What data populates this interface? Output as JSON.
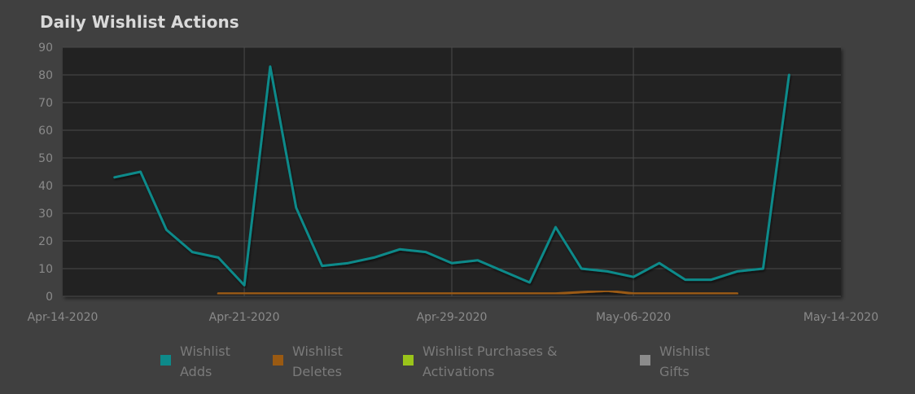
{
  "chart_data": {
    "type": "line",
    "title": "Daily Wishlist Actions",
    "xlabel": "",
    "ylabel": "",
    "ylim": [
      0,
      90
    ],
    "yticks": [
      0,
      10,
      20,
      30,
      40,
      50,
      60,
      70,
      80,
      90
    ],
    "xlim": [
      "2020-04-14",
      "2020-05-14"
    ],
    "xticks": [
      {
        "date": "2020-04-14",
        "label": "Apr-14-2020"
      },
      {
        "date": "2020-04-21",
        "label": "Apr-21-2020"
      },
      {
        "date": "2020-04-29",
        "label": "Apr-29-2020"
      },
      {
        "date": "2020-05-06",
        "label": "May-06-2020"
      },
      {
        "date": "2020-05-14",
        "label": "May-14-2020"
      }
    ],
    "grid": true,
    "legend_position": "bottom",
    "series": [
      {
        "name": "Wishlist Adds",
        "color": "#0d8a8a",
        "points": [
          [
            "2020-04-16",
            43
          ],
          [
            "2020-04-17",
            45
          ],
          [
            "2020-04-18",
            24
          ],
          [
            "2020-04-19",
            16
          ],
          [
            "2020-04-20",
            14
          ],
          [
            "2020-04-21",
            4
          ],
          [
            "2020-04-22",
            83
          ],
          [
            "2020-04-23",
            32
          ],
          [
            "2020-04-24",
            11
          ],
          [
            "2020-04-25",
            12
          ],
          [
            "2020-04-26",
            14
          ],
          [
            "2020-04-27",
            17
          ],
          [
            "2020-04-28",
            16
          ],
          [
            "2020-04-29",
            12
          ],
          [
            "2020-04-30",
            13
          ],
          [
            "2020-05-01",
            9
          ],
          [
            "2020-05-02",
            5
          ],
          [
            "2020-05-03",
            25
          ],
          [
            "2020-05-04",
            10
          ],
          [
            "2020-05-05",
            9
          ],
          [
            "2020-05-06",
            7
          ],
          [
            "2020-05-07",
            12
          ],
          [
            "2020-05-08",
            6
          ],
          [
            "2020-05-09",
            6
          ],
          [
            "2020-05-10",
            9
          ],
          [
            "2020-05-11",
            10
          ],
          [
            "2020-05-12",
            80
          ]
        ]
      },
      {
        "name": "Wishlist Deletes",
        "color": "#9a5a12",
        "points": [
          [
            "2020-04-20",
            1
          ],
          [
            "2020-04-21",
            1
          ],
          [
            "2020-04-22",
            1
          ],
          [
            "2020-04-23",
            1
          ],
          [
            "2020-04-24",
            1
          ],
          [
            "2020-04-25",
            1
          ],
          [
            "2020-04-26",
            1
          ],
          [
            "2020-04-27",
            1
          ],
          [
            "2020-04-28",
            1
          ],
          [
            "2020-04-29",
            1
          ],
          [
            "2020-04-30",
            1
          ],
          [
            "2020-05-01",
            1
          ],
          [
            "2020-05-02",
            1
          ],
          [
            "2020-05-03",
            1
          ],
          [
            "2020-05-04",
            1.5
          ],
          [
            "2020-05-05",
            2
          ],
          [
            "2020-05-06",
            1
          ],
          [
            "2020-05-07",
            1
          ],
          [
            "2020-05-08",
            1
          ],
          [
            "2020-05-09",
            1
          ],
          [
            "2020-05-10",
            1
          ]
        ]
      },
      {
        "name": "Wishlist Purchases & Activations",
        "color": "#9ac41a",
        "points": []
      },
      {
        "name": "Wishlist Gifts",
        "color": "#8c8c8c",
        "points": []
      }
    ]
  },
  "legend": [
    {
      "line1": "Wishlist",
      "line2": "Adds",
      "color": "#0d8a8a"
    },
    {
      "line1": "Wishlist",
      "line2": "Deletes",
      "color": "#9a5a12"
    },
    {
      "line1": "Wishlist Purchases &",
      "line2": "Activations",
      "color": "#9ac41a"
    },
    {
      "line1": "Wishlist",
      "line2": "Gifts",
      "color": "#8c8c8c"
    }
  ]
}
